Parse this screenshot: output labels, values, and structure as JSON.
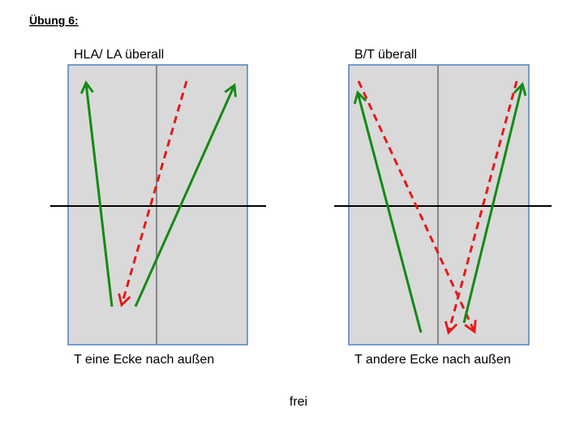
{
  "header": {
    "title": "Übung 6:"
  },
  "panels": [
    {
      "label": "HLA/ LA überall",
      "caption": "T eine Ecke nach außen"
    },
    {
      "label": "B/T überall",
      "caption": "T andere Ecke nach außen"
    }
  ],
  "footer": {
    "text": "frei"
  }
}
